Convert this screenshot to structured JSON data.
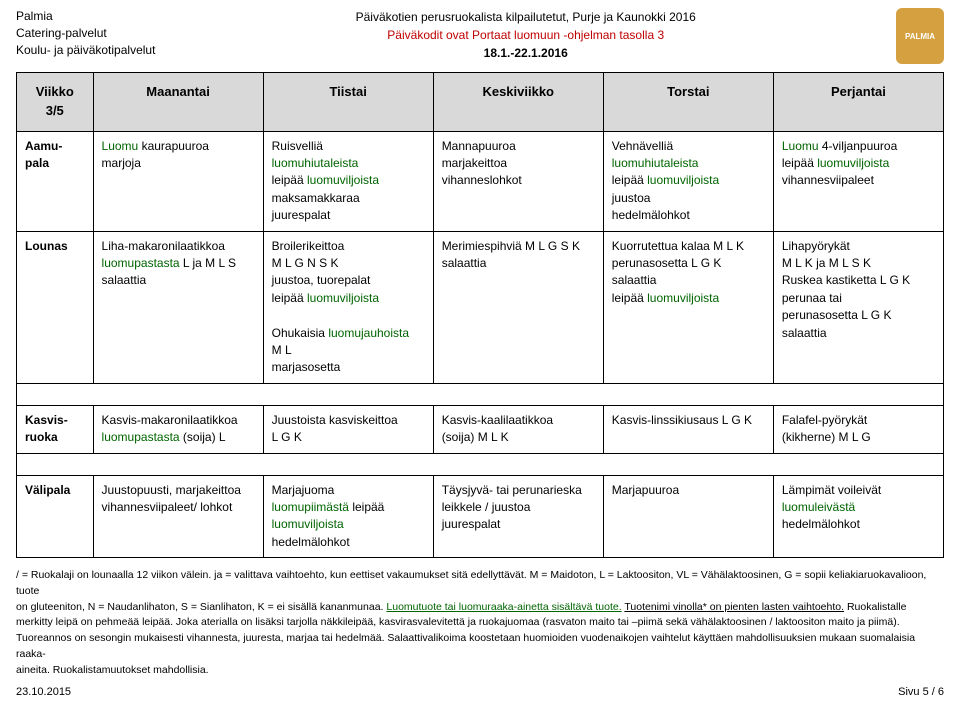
{
  "header": {
    "org1": "Palmia",
    "org2": "Catering-palvelut",
    "org3": "Koulu- ja päiväkotipalvelut",
    "title1": "Päiväkotien perusruokalista kilpailutetut, Purje ja Kaunokki 2016",
    "title2": "Päiväkodit ovat Portaat luomuun -ohjelman tasolla 3",
    "dates": "18.1.-22.1.2016",
    "logo": "PALMIA"
  },
  "table": {
    "week_label": "Viikko",
    "week_num": "3/5",
    "days": [
      "Maanantai",
      "Tiistai",
      "Keskiviikko",
      "Torstai",
      "Perjantai"
    ],
    "rows": [
      {
        "label": "Aamu-pala",
        "cells": [
          "Luomu kaurapuuroa\nmarjoja",
          "Ruisvelliä\nluomuhiutaleista\nleipää luomuviljoista\nmaksamakkaraa\njuurespalat",
          "Mannapuuroa\nmarjakeittoa\nvihanneslohkot",
          "Vehnävelliä\nluomuhiutaleista\nleipää luomuviljoista\njuustoa\nhedelmälohkot",
          "Luomu 4-viljanpuuroa\nleipää luomuviljoista\nvihannesviipaleet"
        ]
      },
      {
        "label": "Lounas",
        "cells": [
          "Liha-makaronilaatikkoa\nluomupastasta L ja M L S\nsalaattia",
          "Broilerikeittoa\nM L G N S K\njuustoa, tuorepalat\nleipää luomuviljoista\n\nOhukaisia luomujauhoista\nM L\nmarjasosetta",
          "Merimiespihviä M L G S K\nsalaattia",
          "Kuorrutettua kalaa M L K\nperunasosetta L G K\nsalaattia\nleipää luomuviljoista",
          "Lihapyörykät\nM L K ja M L S K\nRuskea kastiketta L G K\nperunaa tai\nperunasosetta L G K\nsalaattia"
        ]
      },
      {
        "label": "Kasvis-ruoka",
        "cells": [
          "Kasvis-makaronilaatikkoa\nluomupastasta (soija) L",
          "Juustoista kasviskeittoa\nL G K",
          "Kasvis-kaalilaatikkoa\n(soija) M L K",
          "Kasvis-linssikiusaus L G K",
          "Falafel-pyörykät\n(kikherne) M L G"
        ]
      },
      {
        "label": "Välipala",
        "cells": [
          "Juustopuusti, marjakeittoa\nvihannesviipaleet/ lohkot",
          "Marjajuoma\nluomupiimästä leipää\nluomuviljoista\nhedelmälohkot",
          "Täysjyvä- tai perunarieska\nleikkele / juustoa\njuurespalat",
          "Marjapuuroa",
          "Lämpimät voileivät\nluomuleivästä\nhedelmälohkot"
        ]
      }
    ]
  },
  "luomu_terms": [
    "Luomu",
    "luomuhiutaleista",
    "luomuviljoista",
    "luomupastasta",
    "luomujauhoista",
    "luomupiimästä",
    "luomuleivästä",
    "Luomutuote tai luomuraaka-ainetta sisältävä tuote."
  ],
  "footnotes": {
    "l1": "/ = Ruokalaji on lounaalla 12 viikon välein. ja = valittava vaihtoehto, kun eettiset vakaumukset sitä edellyttävät. M = Maidoton, L = Laktoositon, VL = Vähälaktoosinen, G = sopii keliakiaruokavalioon, tuote",
    "l2a": "on gluteeniton, N = Naudanlihaton, S = Sianlihaton, K = ei sisällä kananmunaa. ",
    "l2b_green": "Luomutuote tai luomuraaka-ainetta sisältävä tuote.",
    "l2c": " ",
    "l2d_u": "Tuotenimi vinolla* on pienten lasten vaihtoehto.",
    "l2e": " Ruokalistalle",
    "l3": "merkitty leipä on pehmeää leipää. Joka aterialla on lisäksi tarjolla näkkileipää, kasvirasvalevitettä ja ruokajuomaa (rasvaton maito tai –piimä sekä vähälaktoosinen / laktoositon maito ja piimä).",
    "l4": "Tuoreannos on sesongin mukaisesti vihannesta, juuresta, marjaa tai hedelmää. Salaattivalikoima koostetaan huomioiden vuodenaikojen vaihtelut käyttäen mahdollisuuksien mukaan suomalaisia raaka-",
    "l5": "aineita. Ruokalistamuutokset mahdollisia."
  },
  "footer": {
    "date": "23.10.2015",
    "page": "Sivu 5 / 6"
  }
}
